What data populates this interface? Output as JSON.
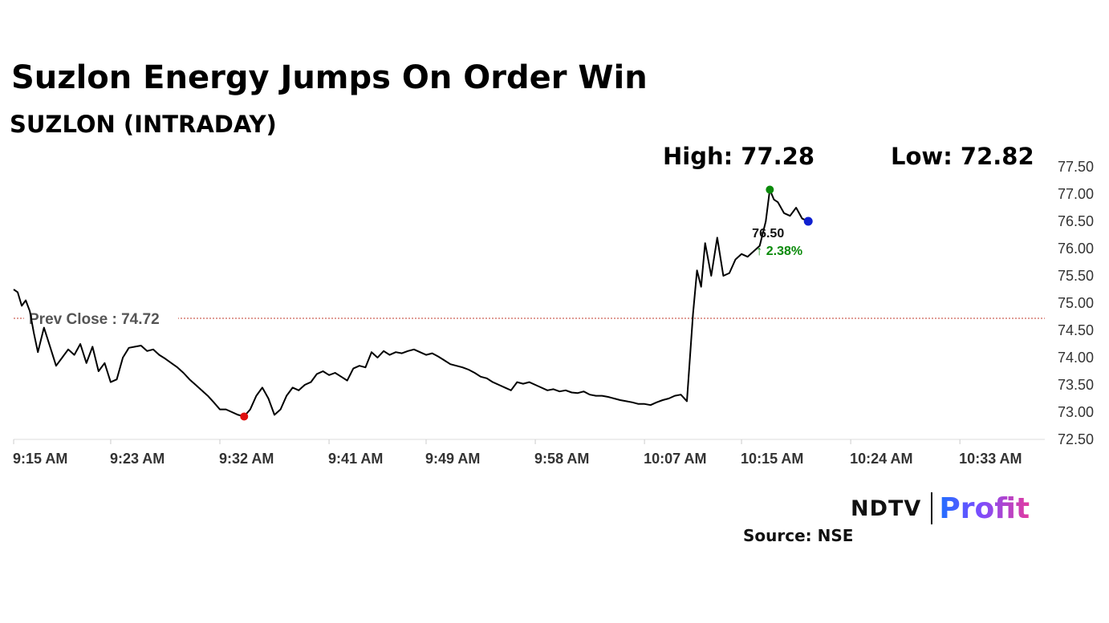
{
  "title": "Suzlon Energy Jumps On Order Win",
  "subtitle": "SUZLON (INTRADAY)",
  "high_label": "High: 77.28",
  "low_label": "Low: 72.82",
  "logo": {
    "ndtv": "NDTV",
    "profit": "Profit"
  },
  "source": "Source: NSE",
  "colors": {
    "line": "#000000",
    "prev_close_line": "#c0392b",
    "high_marker": "#0a8a0a",
    "low_marker": "#e01010",
    "last_marker": "#1020d0",
    "change_up": "#0a8a0a"
  },
  "chart_data": {
    "type": "line",
    "ylim": [
      72.5,
      77.5
    ],
    "y_ticks": [
      "77.50",
      "77.00",
      "76.50",
      "76.00",
      "75.50",
      "75.00",
      "74.50",
      "74.00",
      "73.50",
      "73.00",
      "72.50"
    ],
    "x_range": [
      "9:15",
      "10:40"
    ],
    "x_ticks": [
      "9:15 AM",
      "9:23 AM",
      "9:32 AM",
      "9:41 AM",
      "9:49 AM",
      "9:58 AM",
      "10:07 AM",
      "10:15 AM",
      "10:24 AM",
      "10:33 AM"
    ],
    "prev_close": {
      "label": "Prev Close : 74.72",
      "value": 74.72
    },
    "last": {
      "value_label": "76.50",
      "change_label": "↑ 2.38%"
    },
    "series": [
      {
        "points": [
          [
            "9:15",
            75.25
          ],
          [
            "9:15:20",
            75.2
          ],
          [
            "9:15:40",
            74.95
          ],
          [
            "9:16",
            75.05
          ],
          [
            "9:16:20",
            74.85
          ],
          [
            "9:16:40",
            74.45
          ],
          [
            "9:17",
            74.1
          ],
          [
            "9:17:30",
            74.55
          ],
          [
            "9:18",
            74.2
          ],
          [
            "9:18:30",
            73.85
          ],
          [
            "9:19",
            74.0
          ],
          [
            "9:19:30",
            74.15
          ],
          [
            "9:20",
            74.05
          ],
          [
            "9:20:30",
            74.25
          ],
          [
            "9:21",
            73.9
          ],
          [
            "9:21:30",
            74.2
          ],
          [
            "9:22",
            73.75
          ],
          [
            "9:22:30",
            73.9
          ],
          [
            "9:23",
            73.55
          ],
          [
            "9:23:30",
            73.6
          ],
          [
            "9:24",
            74.0
          ],
          [
            "9:24:30",
            74.18
          ],
          [
            "9:25",
            74.2
          ],
          [
            "9:25:30",
            74.22
          ],
          [
            "9:26",
            74.12
          ],
          [
            "9:26:30",
            74.15
          ],
          [
            "9:27",
            74.05
          ],
          [
            "9:27:30",
            73.98
          ],
          [
            "9:28",
            73.9
          ],
          [
            "9:28:30",
            73.82
          ],
          [
            "9:29",
            73.72
          ],
          [
            "9:29:30",
            73.6
          ],
          [
            "9:30",
            73.5
          ],
          [
            "9:30:30",
            73.4
          ],
          [
            "9:31",
            73.3
          ],
          [
            "9:31:30",
            73.18
          ],
          [
            "9:32",
            73.05
          ],
          [
            "9:32:30",
            73.05
          ],
          [
            "9:33",
            73.0
          ],
          [
            "9:33:30",
            72.95
          ],
          [
            "9:34",
            72.92
          ],
          [
            "9:34:30",
            73.05
          ],
          [
            "9:35",
            73.3
          ],
          [
            "9:35:30",
            73.45
          ],
          [
            "9:36",
            73.25
          ],
          [
            "9:36:30",
            72.95
          ],
          [
            "9:37",
            73.05
          ],
          [
            "9:37:30",
            73.3
          ],
          [
            "9:38",
            73.45
          ],
          [
            "9:38:30",
            73.4
          ],
          [
            "9:39",
            73.5
          ],
          [
            "9:39:30",
            73.55
          ],
          [
            "9:40",
            73.7
          ],
          [
            "9:40:30",
            73.75
          ],
          [
            "9:41",
            73.68
          ],
          [
            "9:41:30",
            73.72
          ],
          [
            "9:42",
            73.65
          ],
          [
            "9:42:30",
            73.58
          ],
          [
            "9:43",
            73.8
          ],
          [
            "9:43:30",
            73.85
          ],
          [
            "9:44",
            73.82
          ],
          [
            "9:44:30",
            74.1
          ],
          [
            "9:45",
            74.0
          ],
          [
            "9:45:30",
            74.12
          ],
          [
            "9:46",
            74.05
          ],
          [
            "9:46:30",
            74.1
          ],
          [
            "9:47",
            74.08
          ],
          [
            "9:47:30",
            74.12
          ],
          [
            "9:48",
            74.15
          ],
          [
            "9:48:30",
            74.1
          ],
          [
            "9:49",
            74.05
          ],
          [
            "9:49:30",
            74.08
          ],
          [
            "9:50",
            74.02
          ],
          [
            "9:50:30",
            73.95
          ],
          [
            "9:51",
            73.88
          ],
          [
            "9:51:30",
            73.85
          ],
          [
            "9:52",
            73.82
          ],
          [
            "9:52:30",
            73.78
          ],
          [
            "9:53",
            73.72
          ],
          [
            "9:53:30",
            73.65
          ],
          [
            "9:54",
            73.62
          ],
          [
            "9:54:30",
            73.55
          ],
          [
            "9:55",
            73.5
          ],
          [
            "9:55:30",
            73.45
          ],
          [
            "9:56",
            73.4
          ],
          [
            "9:56:30",
            73.55
          ],
          [
            "9:57",
            73.52
          ],
          [
            "9:57:30",
            73.55
          ],
          [
            "9:58",
            73.5
          ],
          [
            "9:58:30",
            73.45
          ],
          [
            "9:59",
            73.4
          ],
          [
            "9:59:30",
            73.42
          ],
          [
            "10:00",
            73.38
          ],
          [
            "10:00:30",
            73.4
          ],
          [
            "10:01",
            73.36
          ],
          [
            "10:01:30",
            73.35
          ],
          [
            "10:02",
            73.38
          ],
          [
            "10:02:30",
            73.32
          ],
          [
            "10:03",
            73.3
          ],
          [
            "10:03:30",
            73.3
          ],
          [
            "10:04",
            73.28
          ],
          [
            "10:04:30",
            73.25
          ],
          [
            "10:05",
            73.22
          ],
          [
            "10:05:30",
            73.2
          ],
          [
            "10:06",
            73.18
          ],
          [
            "10:06:30",
            73.15
          ],
          [
            "10:07",
            73.15
          ],
          [
            "10:07:30",
            73.13
          ],
          [
            "10:08",
            73.18
          ],
          [
            "10:08:30",
            73.22
          ],
          [
            "10:09",
            73.25
          ],
          [
            "10:09:30",
            73.3
          ],
          [
            "10:10",
            73.32
          ],
          [
            "10:10:30",
            73.2
          ],
          [
            "10:11",
            74.8
          ],
          [
            "10:11:20",
            75.6
          ],
          [
            "10:11:40",
            75.3
          ],
          [
            "10:12",
            76.1
          ],
          [
            "10:12:30",
            75.5
          ],
          [
            "10:13",
            76.2
          ],
          [
            "10:13:30",
            75.5
          ],
          [
            "10:14",
            75.55
          ],
          [
            "10:14:30",
            75.8
          ],
          [
            "10:15",
            75.9
          ],
          [
            "10:15:30",
            75.85
          ],
          [
            "10:16",
            75.95
          ],
          [
            "10:16:30",
            76.05
          ],
          [
            "10:17",
            76.5
          ],
          [
            "10:17:20",
            77.08
          ],
          [
            "10:17:40",
            76.9
          ],
          [
            "10:18",
            76.85
          ],
          [
            "10:18:30",
            76.65
          ],
          [
            "10:19",
            76.6
          ],
          [
            "10:19:30",
            76.75
          ],
          [
            "10:20",
            76.55
          ],
          [
            "10:20:30",
            76.5
          ]
        ]
      }
    ],
    "markers": {
      "high": [
        "10:17:20",
        77.08
      ],
      "low": [
        "9:34",
        72.92
      ],
      "last": [
        "10:20:30",
        76.5
      ]
    }
  }
}
